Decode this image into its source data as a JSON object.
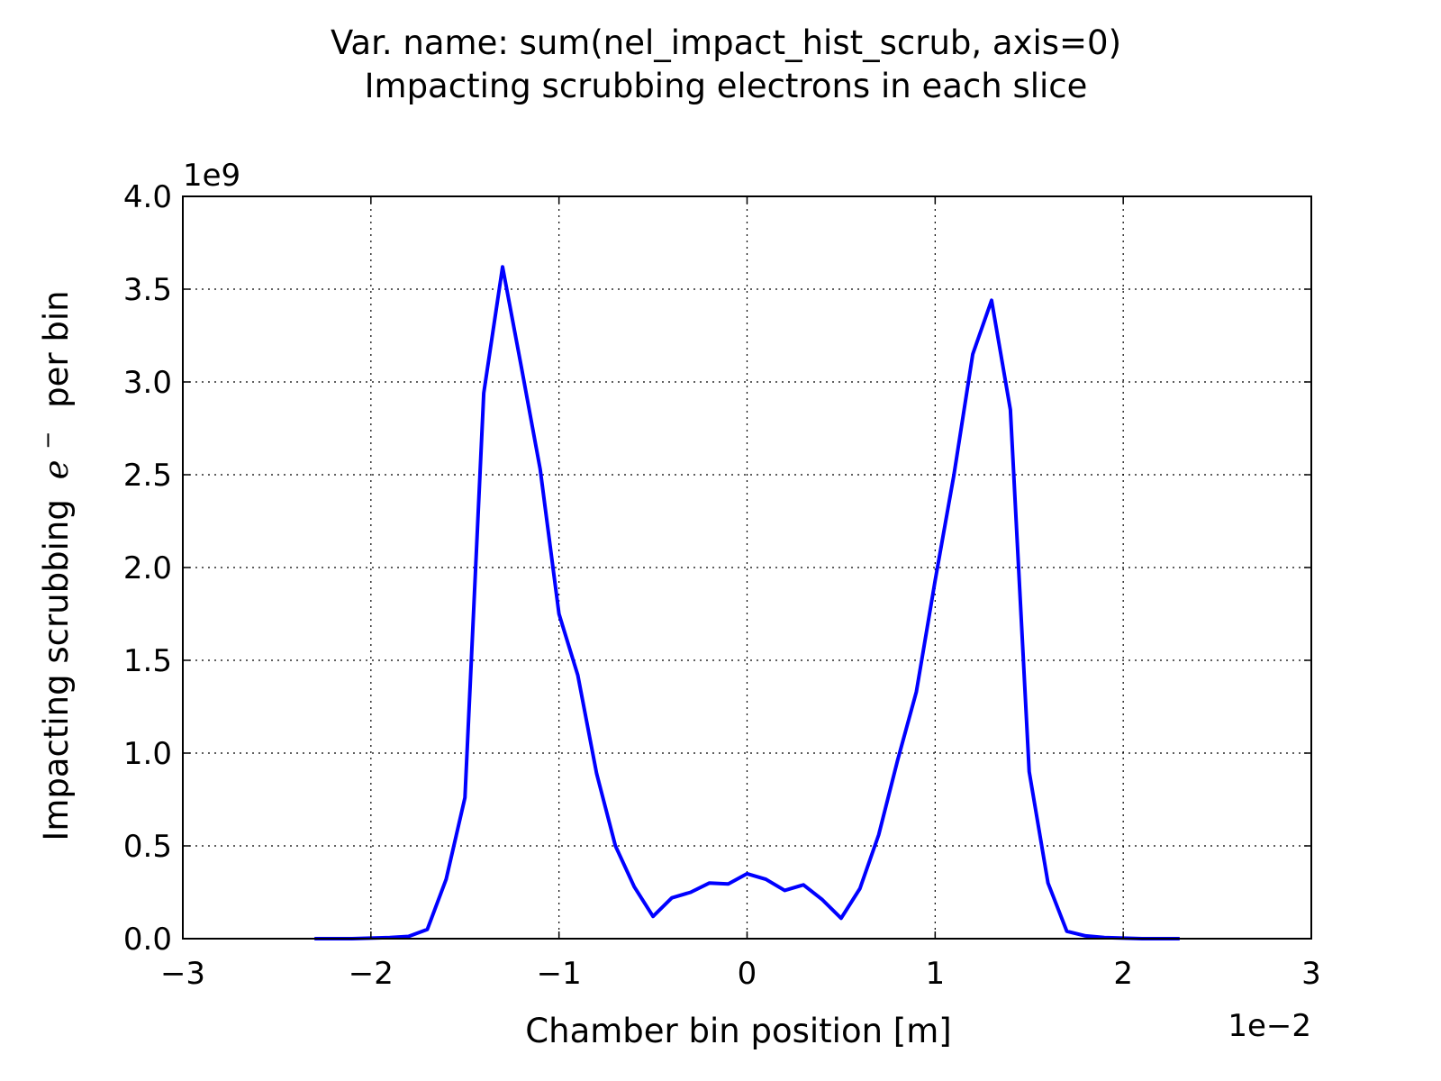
{
  "chart_data": {
    "type": "line",
    "title": "Var. name: sum(nel_impact_hist_scrub, axis=0)",
    "subtitle": "Impacting scrubbing electrons in each slice",
    "xlabel": "Chamber bin position [m]",
    "ylabel_main": "Impacting scrubbing",
    "ylabel_symbol": "e",
    "ylabel_sup": "−",
    "ylabel_tail": "per bin",
    "x_offset_text": "1e−2",
    "y_offset_text": "1e9",
    "xlim": [
      -3,
      3
    ],
    "ylim": [
      0,
      4
    ],
    "grid": true,
    "x_ticks": [
      {
        "value": -3,
        "label": "−3"
      },
      {
        "value": -2,
        "label": "−2"
      },
      {
        "value": -1,
        "label": "−1"
      },
      {
        "value": 0,
        "label": "0"
      },
      {
        "value": 1,
        "label": "1"
      },
      {
        "value": 2,
        "label": "2"
      },
      {
        "value": 3,
        "label": "3"
      }
    ],
    "y_ticks": [
      {
        "value": 0,
        "label": "0.0"
      },
      {
        "value": 0.5,
        "label": "0.5"
      },
      {
        "value": 1,
        "label": "1.0"
      },
      {
        "value": 1.5,
        "label": "1.5"
      },
      {
        "value": 2,
        "label": "2.0"
      },
      {
        "value": 2.5,
        "label": "2.5"
      },
      {
        "value": 3,
        "label": "3.0"
      },
      {
        "value": 3.5,
        "label": "3.5"
      },
      {
        "value": 4,
        "label": "4.0"
      }
    ],
    "series": [
      {
        "color": "#0000ff",
        "x": [
          -2.3,
          -2.2,
          -2.1,
          -2.0,
          -1.9,
          -1.8,
          -1.7,
          -1.6,
          -1.5,
          -1.4,
          -1.3,
          -1.2,
          -1.1,
          -1.0,
          -0.9,
          -0.8,
          -0.7,
          -0.6,
          -0.5,
          -0.4,
          -0.3,
          -0.2,
          -0.1,
          0.0,
          0.1,
          0.2,
          0.3,
          0.4,
          0.5,
          0.6,
          0.7,
          0.8,
          0.9,
          1.0,
          1.1,
          1.2,
          1.3,
          1.4,
          1.5,
          1.6,
          1.7,
          1.8,
          1.9,
          2.0,
          2.1,
          2.2,
          2.3
        ],
        "y": [
          0.0,
          0.0,
          0.0,
          0.003,
          0.006,
          0.012,
          0.05,
          0.32,
          0.76,
          2.94,
          3.62,
          3.08,
          2.53,
          1.75,
          1.42,
          0.89,
          0.5,
          0.28,
          0.12,
          0.22,
          0.25,
          0.3,
          0.295,
          0.35,
          0.32,
          0.26,
          0.29,
          0.21,
          0.11,
          0.27,
          0.56,
          0.96,
          1.33,
          1.93,
          2.5,
          3.15,
          3.44,
          2.85,
          0.9,
          0.3,
          0.04,
          0.015,
          0.006,
          0.003,
          0.0,
          0.0,
          0.0
        ]
      }
    ]
  }
}
